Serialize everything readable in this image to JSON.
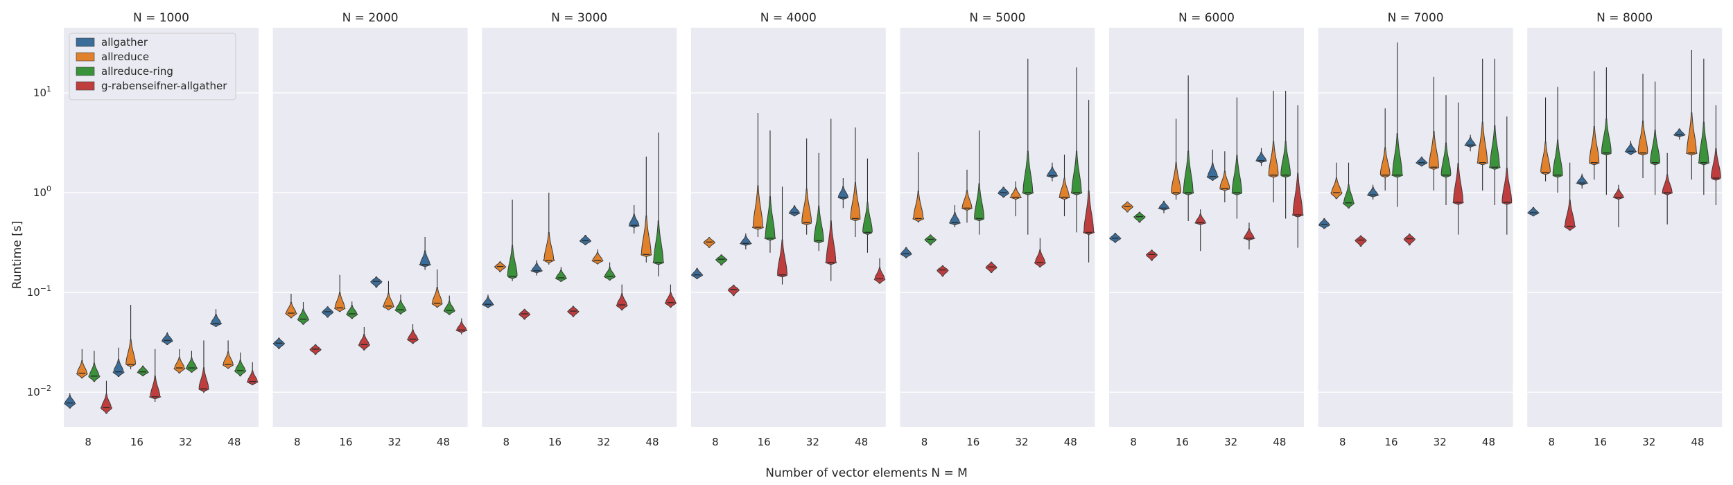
{
  "chart_data": {
    "type": "violin",
    "xlabel": "Number of vector elements N = M",
    "ylabel": "Runtime [s]",
    "yscale": "log",
    "ylim": [
      0.0045,
      45
    ],
    "y_ticks": [
      {
        "value": 0.01,
        "base": "10",
        "exp": "−2"
      },
      {
        "value": 0.1,
        "base": "10",
        "exp": "−1"
      },
      {
        "value": 1,
        "base": "10",
        "exp": "0"
      },
      {
        "value": 10,
        "base": "10",
        "exp": "1"
      }
    ],
    "categories": [
      "8",
      "16",
      "32",
      "48"
    ],
    "legend": {
      "placement": "upper-left of first panel"
    },
    "series": [
      {
        "name": "allgather",
        "color": "#3a6d99"
      },
      {
        "name": "allreduce",
        "color": "#e1812c"
      },
      {
        "name": "allreduce-ring",
        "color": "#3a923a"
      },
      {
        "name": "g-rabenseifner-allgather",
        "color": "#c03d3e"
      }
    ],
    "panels": [
      {
        "title": "N = 1000",
        "groups": [
          [
            [
              0.0078,
              0.0075,
              0.0098
            ],
            [
              0.0155,
              0.0148,
              0.027
            ],
            [
              0.0145,
              0.014,
              0.026
            ],
            [
              0.007,
              0.0068,
              0.013
            ]
          ],
          [
            [
              0.016,
              0.0152,
              0.028
            ],
            [
              0.019,
              0.017,
              0.075
            ],
            [
              0.016,
              0.015,
              0.018
            ],
            [
              0.009,
              0.008,
              0.027
            ]
          ],
          [
            [
              0.033,
              0.031,
              0.04
            ],
            [
              0.0175,
              0.0168,
              0.027
            ],
            [
              0.0175,
              0.0165,
              0.026
            ],
            [
              0.0108,
              0.0098,
              0.033
            ]
          ],
          [
            [
              0.049,
              0.045,
              0.068
            ],
            [
              0.019,
              0.0178,
              0.033
            ],
            [
              0.0165,
              0.016,
              0.025
            ],
            [
              0.0128,
              0.0118,
              0.02
            ]
          ]
        ]
      },
      {
        "title": "N = 2000",
        "groups": [
          [
            [
              0.031,
              0.03,
              0.033
            ],
            [
              0.062,
              0.059,
              0.097
            ],
            [
              0.054,
              0.052,
              0.08
            ],
            [
              0.027,
              0.026,
              0.028
            ]
          ],
          [
            [
              0.064,
              0.062,
              0.068
            ],
            [
              0.07,
              0.065,
              0.15
            ],
            [
              0.061,
              0.058,
              0.081
            ],
            [
              0.03,
              0.029,
              0.045
            ]
          ],
          [
            [
              0.129,
              0.126,
              0.133
            ],
            [
              0.073,
              0.068,
              0.13
            ],
            [
              0.067,
              0.063,
              0.095
            ],
            [
              0.034,
              0.032,
              0.048
            ]
          ],
          [
            [
              0.19,
              0.168,
              0.36
            ],
            [
              0.078,
              0.073,
              0.17
            ],
            [
              0.066,
              0.062,
              0.093
            ],
            [
              0.042,
              0.038,
              0.055
            ]
          ]
        ]
      },
      {
        "title": "N = 3000",
        "groups": [
          [
            [
              0.076,
              0.07,
              0.095
            ],
            [
              0.182,
              0.175,
              0.19
            ],
            [
              0.145,
              0.13,
              0.85
            ],
            [
              0.061,
              0.059,
              0.063
            ]
          ],
          [
            [
              0.165,
              0.148,
              0.21
            ],
            [
              0.21,
              0.19,
              1.0
            ],
            [
              0.14,
              0.13,
              0.18
            ],
            [
              0.065,
              0.063,
              0.068
            ]
          ],
          [
            [
              0.33,
              0.31,
              0.36
            ],
            [
              0.21,
              0.195,
              0.27
            ],
            [
              0.145,
              0.135,
              0.2
            ],
            [
              0.075,
              0.072,
              0.12
            ]
          ],
          [
            [
              0.47,
              0.39,
              0.75
            ],
            [
              0.24,
              0.2,
              2.3
            ],
            [
              0.2,
              0.145,
              4.0
            ],
            [
              0.079,
              0.075,
              0.12
            ]
          ]
        ]
      },
      {
        "title": "N = 4000",
        "groups": [
          [
            [
              0.15,
              0.14,
              0.175
            ],
            [
              0.32,
              0.31,
              0.33
            ],
            [
              0.215,
              0.21,
              0.22
            ],
            [
              0.107,
              0.105,
              0.109
            ]
          ],
          [
            [
              0.31,
              0.27,
              0.39
            ],
            [
              0.45,
              0.36,
              6.3
            ],
            [
              0.35,
              0.25,
              4.2
            ],
            [
              0.15,
              0.12,
              1.15
            ]
          ],
          [
            [
              0.63,
              0.58,
              0.75
            ],
            [
              0.5,
              0.38,
              3.5
            ],
            [
              0.33,
              0.26,
              2.5
            ],
            [
              0.2,
              0.13,
              5.5
            ]
          ],
          [
            [
              0.9,
              0.7,
              1.4
            ],
            [
              0.55,
              0.36,
              4.5
            ],
            [
              0.4,
              0.25,
              2.2
            ],
            [
              0.137,
              0.13,
              0.22
            ]
          ]
        ]
      },
      {
        "title": "N = 5000",
        "groups": [
          [
            [
              0.245,
              0.23,
              0.28
            ],
            [
              0.55,
              0.5,
              2.55
            ],
            [
              0.34,
              0.33,
              0.35
            ],
            [
              0.168,
              0.166,
              0.17
            ]
          ],
          [
            [
              0.5,
              0.45,
              0.75
            ],
            [
              0.7,
              0.5,
              1.7
            ],
            [
              0.55,
              0.38,
              4.2
            ],
            [
              0.18,
              0.175,
              0.19
            ]
          ],
          [
            [
              1.0,
              0.95,
              1.1
            ],
            [
              0.9,
              0.58,
              1.3
            ],
            [
              1.0,
              0.38,
              22
            ],
            [
              0.2,
              0.19,
              0.35
            ]
          ],
          [
            [
              1.48,
              1.3,
              2.0
            ],
            [
              0.9,
              0.58,
              2.4
            ],
            [
              1.0,
              0.4,
              18
            ],
            [
              0.4,
              0.2,
              8.5
            ]
          ]
        ]
      },
      {
        "title": "N = 6000",
        "groups": [
          [
            [
              0.35,
              0.33,
              0.37
            ],
            [
              0.73,
              0.71,
              0.75
            ],
            [
              0.575,
              0.56,
              0.59
            ],
            [
              0.24,
              0.235,
              0.245
            ]
          ],
          [
            [
              0.7,
              0.62,
              0.83
            ],
            [
              1.0,
              0.85,
              5.5
            ],
            [
              1.0,
              0.52,
              15
            ],
            [
              0.5,
              0.26,
              0.68
            ]
          ],
          [
            [
              1.45,
              1.35,
              2.7
            ],
            [
              1.1,
              0.8,
              2.6
            ],
            [
              1.0,
              0.55,
              9.0
            ],
            [
              0.35,
              0.27,
              0.5
            ]
          ],
          [
            [
              2.1,
              1.85,
              2.8
            ],
            [
              1.5,
              0.8,
              10.5
            ],
            [
              1.5,
              0.55,
              10.5
            ],
            [
              0.6,
              0.28,
              7.5
            ]
          ]
        ]
      },
      {
        "title": "N = 7000",
        "groups": [
          [
            [
              0.48,
              0.45,
              0.54
            ],
            [
              1.0,
              0.98,
              2.0
            ],
            [
              0.79,
              0.76,
              2.0
            ],
            [
              0.335,
              0.33,
              0.34
            ]
          ],
          [
            [
              0.95,
              0.85,
              1.2
            ],
            [
              1.5,
              1.05,
              7.0
            ],
            [
              1.5,
              0.72,
              32
            ],
            [
              0.345,
              0.34,
              0.36
            ]
          ],
          [
            [
              2.0,
              1.85,
              2.2
            ],
            [
              1.8,
              1.05,
              14.5
            ],
            [
              1.5,
              0.75,
              9.5
            ],
            [
              0.8,
              0.38,
              8.0
            ]
          ],
          [
            [
              3.0,
              2.6,
              3.8
            ],
            [
              2.0,
              1.05,
              22
            ],
            [
              1.8,
              0.75,
              22
            ],
            [
              0.8,
              0.38,
              5.8
            ]
          ]
        ]
      },
      {
        "title": "N = 8000",
        "groups": [
          [
            [
              0.63,
              0.58,
              0.68
            ],
            [
              1.6,
              1.3,
              9.0
            ],
            [
              1.5,
              1.0,
              11.5
            ],
            [
              0.46,
              0.43,
              2.0
            ]
          ],
          [
            [
              1.25,
              1.1,
              1.55
            ],
            [
              2.0,
              1.35,
              16.5
            ],
            [
              2.5,
              0.95,
              18
            ],
            [
              0.9,
              0.45,
              1.2
            ]
          ],
          [
            [
              2.6,
              2.4,
              3.3
            ],
            [
              2.5,
              1.4,
              15.5
            ],
            [
              2.0,
              0.95,
              13
            ],
            [
              1.0,
              0.48,
              2.5
            ]
          ],
          [
            [
              3.8,
              3.4,
              4.3
            ],
            [
              2.5,
              1.35,
              27
            ],
            [
              2.0,
              0.95,
              22
            ],
            [
              1.4,
              0.75,
              7.5
            ]
          ]
        ]
      }
    ]
  }
}
